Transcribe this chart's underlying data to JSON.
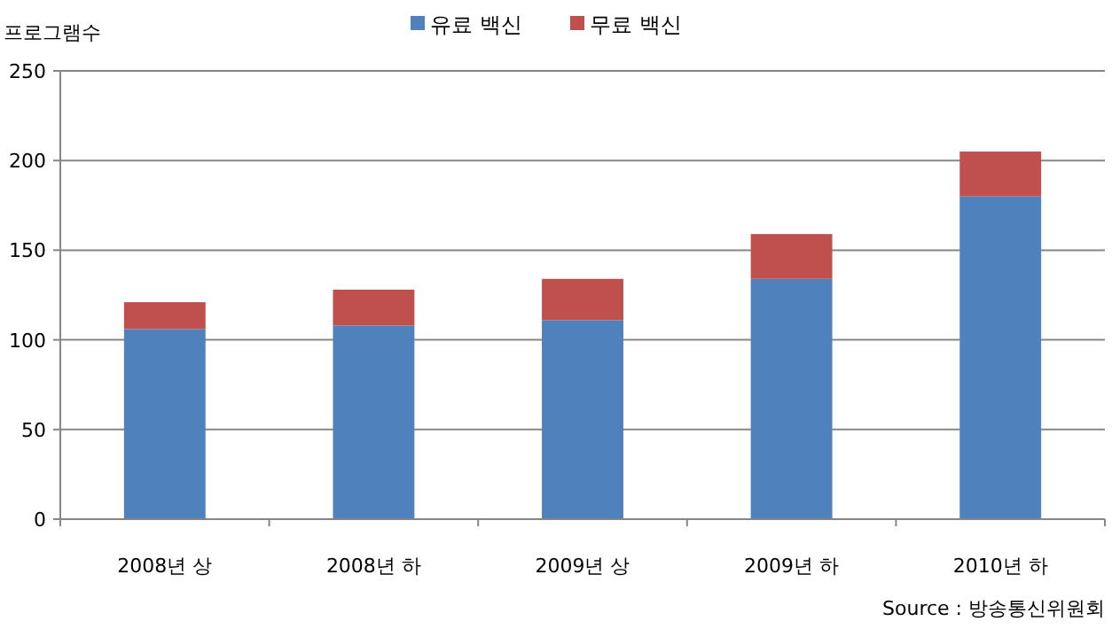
{
  "chart_data": {
    "type": "bar",
    "stacked": true,
    "ylabel": "프로그램수",
    "categories": [
      "2008년 상",
      "2008년 하",
      "2009년 상",
      "2009년 하",
      "2010년 하"
    ],
    "series": [
      {
        "name": "유료 백신",
        "color": "#4f81bd",
        "values": [
          106,
          108,
          111,
          134,
          180
        ]
      },
      {
        "name": "무료 백신",
        "color": "#c0504d",
        "values": [
          15,
          20,
          23,
          25,
          25
        ]
      }
    ],
    "ylim": [
      0,
      250
    ],
    "yticks": [
      0,
      50,
      100,
      150,
      200,
      250
    ],
    "grid": "y",
    "legend": "top",
    "annotations": [
      "Source : 방송통신위원회"
    ]
  }
}
